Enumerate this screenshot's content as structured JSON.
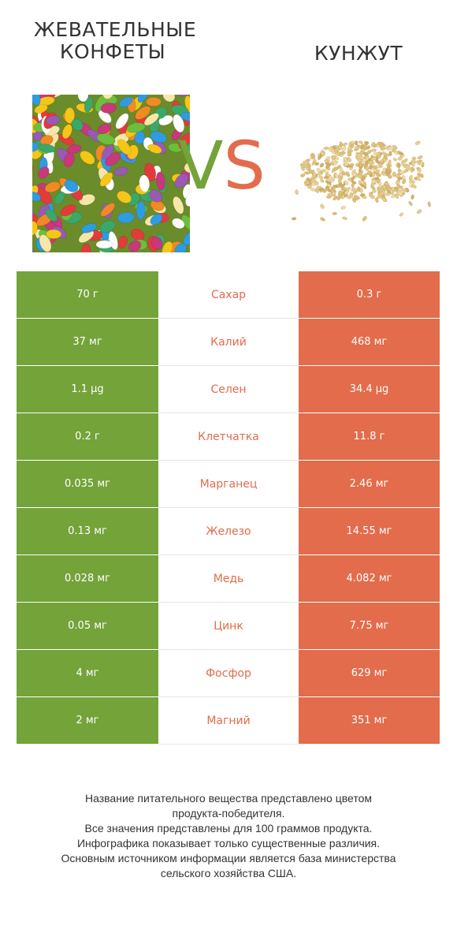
{
  "left_product": {
    "title_line1": "ЖЕВАТЕЛЬНЫЕ",
    "title_line2": "КОНФЕТЫ",
    "color": "#74a33a"
  },
  "right_product": {
    "title": "КУНЖУТ",
    "color": "#e26c4c"
  },
  "vs": {
    "v": "V",
    "s": "S"
  },
  "rows": [
    {
      "left": "70 г",
      "nutrient": "Сахар",
      "right": "0.3 г"
    },
    {
      "left": "37 мг",
      "nutrient": "Калий",
      "right": "468 мг"
    },
    {
      "left": "1.1 µg",
      "nutrient": "Селен",
      "right": "34.4 µg"
    },
    {
      "left": "0.2 г",
      "nutrient": "Клетчатка",
      "right": "11.8 г"
    },
    {
      "left": "0.035 мг",
      "nutrient": "Марганец",
      "right": "2.46 мг"
    },
    {
      "left": "0.13 мг",
      "nutrient": "Железо",
      "right": "14.55 мг"
    },
    {
      "left": "0.028 мг",
      "nutrient": "Медь",
      "right": "4.082 мг"
    },
    {
      "left": "0.05 мг",
      "nutrient": "Цинк",
      "right": "7.75 мг"
    },
    {
      "left": "4 мг",
      "nutrient": "Фосфор",
      "right": "629 мг"
    },
    {
      "left": "2 мг",
      "nutrient": "Магний",
      "right": "351 мг"
    }
  ],
  "footer": {
    "line1": "Название питательного вещества представлено цветом",
    "line2": "продукта-победителя.",
    "line3": "Все значения представлены для 100 граммов продукта.",
    "line4": "Инфографика показывает только существенные различия.",
    "line5": "Основным источником информации является база министерства",
    "line6": "сельского хозяйства США."
  }
}
